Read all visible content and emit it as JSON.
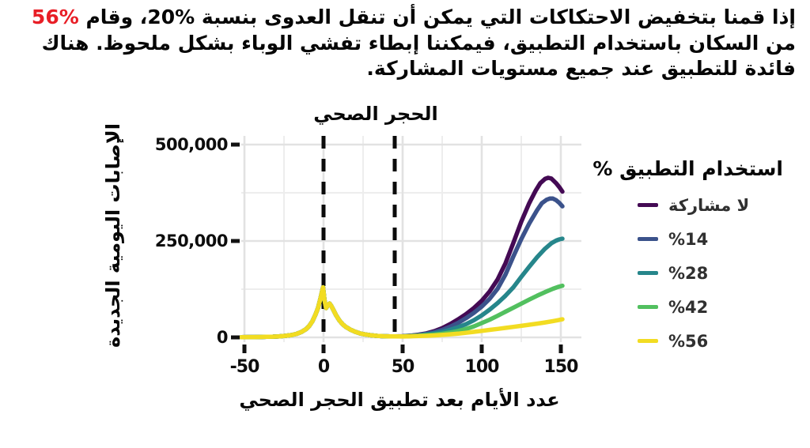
{
  "intro": {
    "before": "إذا قمنا بتخفيض الاحتكاكات التي يمكن أن تنقل العدوى بنسبة %20، وقام ",
    "highlight": "%56",
    "highlight_color": "#e81e26",
    "after": " من السكان باستخدام التطبيق، فيمكننا إبطاء تفشي الوباء بشكل ملحوظ. هناك فائدة للتطبيق عند جميع مستويات المشاركة."
  },
  "chart_data": {
    "type": "line",
    "title": "الحجر الصحي",
    "xlabel": "عدد الأيام بعد تطبيق الحجر الصحي",
    "ylabel": "الإصابات اليومية الجديدة",
    "xlim": [
      -53,
      163
    ],
    "ylim": [
      0,
      500000
    ],
    "grid": "on",
    "legend_position": "right",
    "quarantine_lines_x": [
      0,
      45
    ],
    "x_axis": {
      "ticks": [
        {
          "text": "-50",
          "value": -50
        },
        {
          "text": "0",
          "value": 0
        },
        {
          "text": "50",
          "value": 50
        },
        {
          "text": "100",
          "value": 100
        },
        {
          "text": "150",
          "value": 150
        }
      ],
      "minor": [
        -25,
        25,
        75,
        125
      ]
    },
    "y_axis": {
      "labels": [
        {
          "text": "500,000",
          "value": 500000
        },
        {
          "text": "250,000",
          "value": 250000
        },
        {
          "text": "0",
          "value": 0
        }
      ],
      "minor": [
        125000,
        375000
      ]
    },
    "legend": {
      "title": "استخدام التطبيق %"
    },
    "common_points": [
      [
        -52,
        700
      ],
      [
        -48,
        800
      ],
      [
        -44,
        900
      ],
      [
        -40,
        1100
      ],
      [
        -36,
        1400
      ],
      [
        -32,
        1900
      ],
      [
        -28,
        2700
      ],
      [
        -24,
        4000
      ],
      [
        -20,
        6200
      ],
      [
        -17,
        9200
      ],
      [
        -14,
        14000
      ],
      [
        -11,
        21500
      ],
      [
        -9,
        30000
      ],
      [
        -7,
        42000
      ],
      [
        -5,
        60000
      ],
      [
        -3.5,
        76000
      ],
      [
        -2,
        100000
      ],
      [
        -1,
        118000
      ],
      [
        -0.3,
        130000
      ],
      [
        0.6,
        97000
      ],
      [
        1.6,
        76000
      ],
      [
        2.6,
        82000
      ],
      [
        3.8,
        88000
      ],
      [
        5,
        81000
      ],
      [
        6.5,
        69000
      ],
      [
        8,
        57000
      ],
      [
        10,
        44000
      ],
      [
        12,
        34500
      ],
      [
        14,
        27500
      ],
      [
        17,
        20000
      ],
      [
        20,
        14500
      ],
      [
        23,
        10500
      ],
      [
        26,
        7800
      ],
      [
        30,
        5300
      ],
      [
        34,
        3900
      ],
      [
        38,
        3100
      ],
      [
        42,
        2700
      ],
      [
        45,
        2600
      ]
    ],
    "series": [
      {
        "name": "no-participation",
        "label": "لا مشاركة",
        "color": "#440a54",
        "points": [
          [
            50,
            3100
          ],
          [
            55,
            4600
          ],
          [
            60,
            7000
          ],
          [
            65,
            10500
          ],
          [
            70,
            16000
          ],
          [
            75,
            24000
          ],
          [
            80,
            34500
          ],
          [
            85,
            46500
          ],
          [
            90,
            60000
          ],
          [
            95,
            76000
          ],
          [
            100,
            95000
          ],
          [
            105,
            119000
          ],
          [
            110,
            150000
          ],
          [
            115,
            192000
          ],
          [
            120,
            245000
          ],
          [
            125,
            300000
          ],
          [
            130,
            348000
          ],
          [
            134,
            380000
          ],
          [
            137,
            400000
          ],
          [
            140,
            411000
          ],
          [
            142,
            414000
          ],
          [
            144,
            412000
          ],
          [
            147,
            400000
          ],
          [
            149,
            390000
          ],
          [
            151,
            378000
          ]
        ]
      },
      {
        "name": "usage-14",
        "label": "%14",
        "color": "#3b528b",
        "points": [
          [
            50,
            2900
          ],
          [
            55,
            4200
          ],
          [
            60,
            6200
          ],
          [
            65,
            9200
          ],
          [
            70,
            13500
          ],
          [
            75,
            19500
          ],
          [
            80,
            27500
          ],
          [
            85,
            37500
          ],
          [
            90,
            49500
          ],
          [
            95,
            63500
          ],
          [
            100,
            80000
          ],
          [
            105,
            100000
          ],
          [
            110,
            126000
          ],
          [
            115,
            163000
          ],
          [
            120,
            210000
          ],
          [
            125,
            255000
          ],
          [
            130,
            295000
          ],
          [
            135,
            330000
          ],
          [
            138,
            348000
          ],
          [
            141,
            357000
          ],
          [
            143,
            360000
          ],
          [
            145,
            360000
          ],
          [
            147,
            356000
          ],
          [
            149,
            349000
          ],
          [
            151,
            340000
          ]
        ]
      },
      {
        "name": "usage-28",
        "label": "%28",
        "color": "#26868b",
        "points": [
          [
            50,
            2700
          ],
          [
            55,
            3700
          ],
          [
            60,
            5200
          ],
          [
            65,
            7400
          ],
          [
            70,
            10400
          ],
          [
            75,
            14400
          ],
          [
            80,
            19700
          ],
          [
            85,
            26200
          ],
          [
            90,
            34200
          ],
          [
            95,
            44500
          ],
          [
            100,
            57000
          ],
          [
            105,
            72000
          ],
          [
            110,
            89000
          ],
          [
            115,
            108000
          ],
          [
            120,
            130000
          ],
          [
            125,
            157000
          ],
          [
            130,
            183000
          ],
          [
            135,
            208000
          ],
          [
            140,
            230000
          ],
          [
            144,
            244000
          ],
          [
            147,
            251000
          ],
          [
            149,
            254000
          ],
          [
            151,
            256000
          ]
        ]
      },
      {
        "name": "usage-42",
        "label": "%42",
        "color": "#52c05f",
        "points": [
          [
            50,
            2500
          ],
          [
            55,
            3200
          ],
          [
            60,
            4200
          ],
          [
            65,
            5500
          ],
          [
            70,
            7200
          ],
          [
            75,
            9500
          ],
          [
            80,
            12600
          ],
          [
            85,
            16600
          ],
          [
            90,
            21700
          ],
          [
            95,
            28500
          ],
          [
            100,
            37000
          ],
          [
            105,
            46000
          ],
          [
            110,
            56000
          ],
          [
            115,
            66500
          ],
          [
            120,
            77000
          ],
          [
            125,
            87500
          ],
          [
            130,
            98000
          ],
          [
            135,
            108000
          ],
          [
            140,
            117500
          ],
          [
            145,
            126000
          ],
          [
            148,
            130500
          ],
          [
            151,
            134000
          ]
        ]
      },
      {
        "name": "usage-56",
        "label": "%56",
        "color": "#f2dc22",
        "points": [
          [
            50,
            2300
          ],
          [
            55,
            2800
          ],
          [
            60,
            3400
          ],
          [
            65,
            4200
          ],
          [
            70,
            5200
          ],
          [
            75,
            6400
          ],
          [
            80,
            7900
          ],
          [
            85,
            9700
          ],
          [
            90,
            11900
          ],
          [
            95,
            14300
          ],
          [
            100,
            16800
          ],
          [
            105,
            19400
          ],
          [
            110,
            22000
          ],
          [
            115,
            24600
          ],
          [
            120,
            27300
          ],
          [
            125,
            30000
          ],
          [
            130,
            32800
          ],
          [
            135,
            35700
          ],
          [
            140,
            38800
          ],
          [
            145,
            42200
          ],
          [
            148,
            44500
          ],
          [
            151,
            47000
          ]
        ]
      }
    ]
  }
}
